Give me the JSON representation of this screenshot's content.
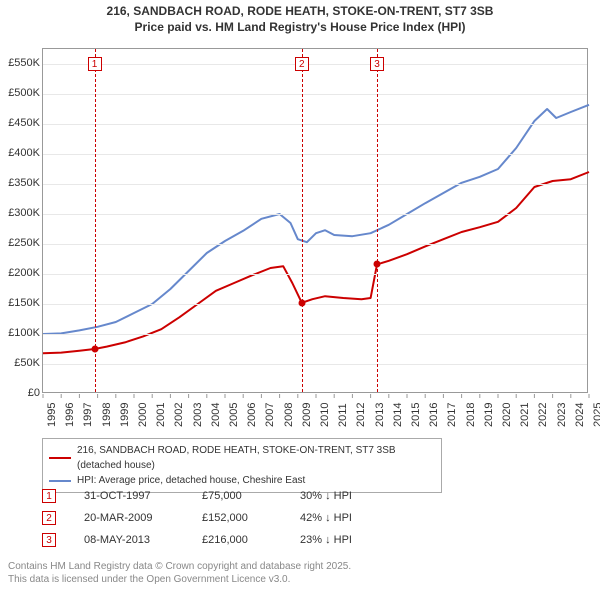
{
  "title_line1": "216, SANDBACH ROAD, RODE HEATH, STOKE-ON-TRENT, ST7 3SB",
  "title_line2": "Price paid vs. HM Land Registry's House Price Index (HPI)",
  "chart": {
    "type": "line",
    "x_min_year": 1995,
    "x_max_year": 2025,
    "x_ticks": [
      1995,
      1996,
      1997,
      1998,
      1999,
      2000,
      2001,
      2002,
      2003,
      2004,
      2005,
      2006,
      2007,
      2008,
      2009,
      2010,
      2011,
      2012,
      2013,
      2014,
      2015,
      2016,
      2017,
      2018,
      2019,
      2020,
      2021,
      2022,
      2023,
      2024,
      2025
    ],
    "y_min": 0,
    "y_max": 575000,
    "y_ticks": [
      {
        "v": 0,
        "label": "£0"
      },
      {
        "v": 50000,
        "label": "£50K"
      },
      {
        "v": 100000,
        "label": "£100K"
      },
      {
        "v": 150000,
        "label": "£150K"
      },
      {
        "v": 200000,
        "label": "£200K"
      },
      {
        "v": 250000,
        "label": "£250K"
      },
      {
        "v": 300000,
        "label": "£300K"
      },
      {
        "v": 350000,
        "label": "£350K"
      },
      {
        "v": 400000,
        "label": "£400K"
      },
      {
        "v": 450000,
        "label": "£450K"
      },
      {
        "v": 500000,
        "label": "£500K"
      },
      {
        "v": 550000,
        "label": "£550K"
      }
    ],
    "grid_color": "#e8e8e8",
    "series_price": {
      "color": "#cc0000",
      "width": 2,
      "points": [
        [
          1995.0,
          68000
        ],
        [
          1996.0,
          69000
        ],
        [
          1997.0,
          72000
        ],
        [
          1997.83,
          75000
        ],
        [
          1998.5,
          79000
        ],
        [
          1999.5,
          86000
        ],
        [
          2000.5,
          96000
        ],
        [
          2001.5,
          108000
        ],
        [
          2002.5,
          128000
        ],
        [
          2003.5,
          150000
        ],
        [
          2004.5,
          172000
        ],
        [
          2005.5,
          185000
        ],
        [
          2006.5,
          198000
        ],
        [
          2007.5,
          210000
        ],
        [
          2008.2,
          213000
        ],
        [
          2008.7,
          185000
        ],
        [
          2009.22,
          152000
        ],
        [
          2009.8,
          158000
        ],
        [
          2010.5,
          163000
        ],
        [
          2011.5,
          160000
        ],
        [
          2012.5,
          158000
        ],
        [
          2013.0,
          160000
        ],
        [
          2013.35,
          216000
        ],
        [
          2014.0,
          222000
        ],
        [
          2015.0,
          233000
        ],
        [
          2016.0,
          246000
        ],
        [
          2017.0,
          258000
        ],
        [
          2018.0,
          270000
        ],
        [
          2019.0,
          278000
        ],
        [
          2020.0,
          287000
        ],
        [
          2021.0,
          310000
        ],
        [
          2022.0,
          345000
        ],
        [
          2023.0,
          355000
        ],
        [
          2024.0,
          358000
        ],
        [
          2025.0,
          370000
        ]
      ]
    },
    "series_hpi": {
      "color": "#6688cc",
      "width": 2,
      "points": [
        [
          1995.0,
          100000
        ],
        [
          1996.0,
          101000
        ],
        [
          1997.0,
          106000
        ],
        [
          1998.0,
          112000
        ],
        [
          1999.0,
          120000
        ],
        [
          2000.0,
          135000
        ],
        [
          2001.0,
          150000
        ],
        [
          2002.0,
          175000
        ],
        [
          2003.0,
          205000
        ],
        [
          2004.0,
          235000
        ],
        [
          2005.0,
          255000
        ],
        [
          2006.0,
          272000
        ],
        [
          2007.0,
          292000
        ],
        [
          2008.0,
          300000
        ],
        [
          2008.6,
          285000
        ],
        [
          2009.0,
          258000
        ],
        [
          2009.5,
          253000
        ],
        [
          2010.0,
          268000
        ],
        [
          2010.5,
          273000
        ],
        [
          2011.0,
          265000
        ],
        [
          2012.0,
          263000
        ],
        [
          2013.0,
          268000
        ],
        [
          2014.0,
          282000
        ],
        [
          2015.0,
          300000
        ],
        [
          2016.0,
          318000
        ],
        [
          2017.0,
          335000
        ],
        [
          2018.0,
          352000
        ],
        [
          2019.0,
          362000
        ],
        [
          2020.0,
          375000
        ],
        [
          2021.0,
          410000
        ],
        [
          2022.0,
          455000
        ],
        [
          2022.7,
          475000
        ],
        [
          2023.2,
          460000
        ],
        [
          2024.0,
          470000
        ],
        [
          2025.0,
          482000
        ]
      ]
    },
    "events": [
      {
        "n": "1",
        "year": 1997.83,
        "price": 75000,
        "color": "#cc0000"
      },
      {
        "n": "2",
        "year": 2009.22,
        "price": 152000,
        "color": "#cc0000"
      },
      {
        "n": "3",
        "year": 2013.35,
        "price": 216000,
        "color": "#cc0000"
      }
    ]
  },
  "legend": {
    "items": [
      {
        "color": "#cc0000",
        "label": "216, SANDBACH ROAD, RODE HEATH, STOKE-ON-TRENT, ST7 3SB (detached house)"
      },
      {
        "color": "#6688cc",
        "label": "HPI: Average price, detached house, Cheshire East"
      }
    ]
  },
  "sales": [
    {
      "n": "1",
      "color": "#cc0000",
      "date": "31-OCT-1997",
      "price": "£75,000",
      "pct": "30% ↓ HPI"
    },
    {
      "n": "2",
      "color": "#cc0000",
      "date": "20-MAR-2009",
      "price": "£152,000",
      "pct": "42% ↓ HPI"
    },
    {
      "n": "3",
      "color": "#cc0000",
      "date": "08-MAY-2013",
      "price": "£216,000",
      "pct": "23% ↓ HPI"
    }
  ],
  "footer_line1": "Contains HM Land Registry data © Crown copyright and database right 2025.",
  "footer_line2": "This data is licensed under the Open Government Licence v3.0."
}
